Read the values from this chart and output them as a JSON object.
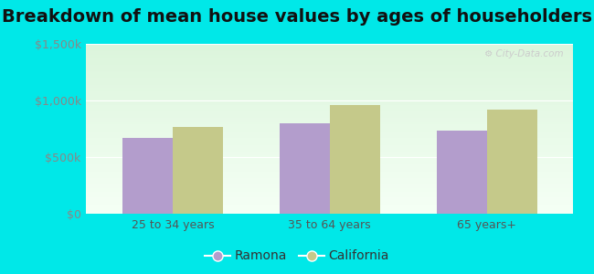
{
  "title": "Breakdown of mean house values by ages of householders",
  "categories": [
    "25 to 34 years",
    "35 to 64 years",
    "65 years+"
  ],
  "ramona_values": [
    670000,
    800000,
    730000
  ],
  "california_values": [
    770000,
    960000,
    920000
  ],
  "ramona_color": "#b39dcc",
  "california_color": "#c5c98a",
  "background_outer": "#00e8e8",
  "ylim": [
    0,
    1500000
  ],
  "yticks": [
    0,
    500000,
    1000000,
    1500000
  ],
  "ytick_labels": [
    "$0",
    "$500k",
    "$1,000k",
    "$1,500k"
  ],
  "legend_labels": [
    "Ramona",
    "California"
  ],
  "bar_width": 0.32,
  "title_fontsize": 14,
  "tick_fontsize": 9,
  "legend_fontsize": 10
}
